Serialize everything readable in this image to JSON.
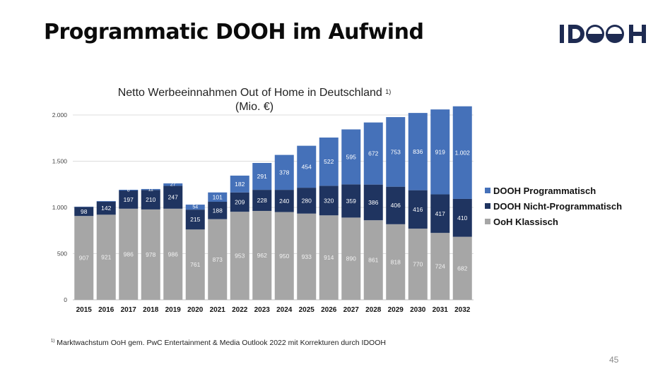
{
  "slide": {
    "title": "Programmatic DOOH im Aufwind",
    "logo": "IDOOH",
    "page_number": "45",
    "footnote_marker": "1)",
    "footnote": "Marktwachstum OoH gem. PwC Entertainment & Media Outlook 2022 mit Korrekturen durch IDOOH"
  },
  "chart_data": {
    "type": "bar",
    "stacked": true,
    "title": "Netto Werbeeinnahmen Out of Home in Deutschland",
    "title_marker": "1)",
    "subtitle": "(Mio. €)",
    "categories": [
      "2015",
      "2016",
      "2017",
      "2018",
      "2019",
      "2020",
      "2021",
      "2022",
      "2023",
      "2024",
      "2025",
      "2026",
      "2027",
      "2028",
      "2029",
      "2030",
      "2031",
      "2032"
    ],
    "series": [
      {
        "name": "OoH Klassisch",
        "color": "#a6a6a6",
        "values": [
          907,
          921,
          986,
          978,
          986,
          761,
          873,
          953,
          962,
          950,
          933,
          914,
          890,
          861,
          818,
          770,
          724,
          682
        ]
      },
      {
        "name": "DOOH Nicht-Programmatisch",
        "color": "#1f3460",
        "values": [
          98,
          142,
          197,
          210,
          247,
          215,
          188,
          209,
          228,
          240,
          280,
          320,
          359,
          386,
          406,
          416,
          417,
          410
        ]
      },
      {
        "name": "DOOH Programmatisch",
        "color": "#4571b9",
        "values": [
          3,
          6,
          8,
          11,
          27,
          54,
          101,
          182,
          291,
          378,
          454,
          522,
          595,
          672,
          753,
          836,
          919,
          1002
        ]
      }
    ],
    "visible_data_labels": [
      [
        "907",
        "921",
        "986",
        "978",
        "986",
        "761",
        "873",
        "953",
        "962",
        "950",
        "933",
        "914",
        "890",
        "861",
        "818",
        "770",
        "724",
        "682"
      ],
      [
        "98",
        "142",
        "197",
        "210",
        "247",
        "215",
        "188",
        "209",
        "228",
        "240",
        "280",
        "320",
        "359",
        "386",
        "406",
        "416",
        "417",
        "410"
      ],
      [
        "",
        "",
        "8",
        "11",
        "27",
        "54",
        "101",
        "182",
        "291",
        "378",
        "454",
        "522",
        "595",
        "672",
        "753",
        "836",
        "919",
        "1.002"
      ]
    ],
    "legend_order": [
      "DOOH Programmatisch",
      "DOOH Nicht-Programmatisch",
      "OoH Klassisch"
    ],
    "ylim": [
      0,
      2000
    ],
    "yticks": [
      0,
      500,
      1000,
      1500,
      2000
    ],
    "ytick_labels": [
      "0",
      "500",
      "1.000",
      "1.500",
      "2.000"
    ],
    "xlabel": "",
    "ylabel": "",
    "grid": true,
    "legend_position": "right"
  }
}
